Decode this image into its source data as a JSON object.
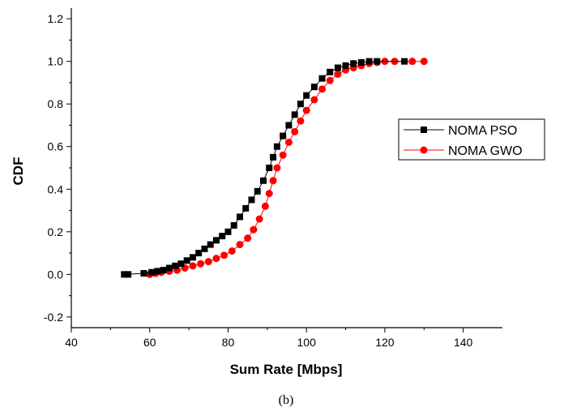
{
  "chart_data": {
    "type": "scatter",
    "xlabel": "Sum Rate [Mbps]",
    "ylabel": "CDF",
    "xlim": [
      40,
      150
    ],
    "ylim": [
      -0.25,
      1.25
    ],
    "x_ticks": [
      40,
      60,
      80,
      100,
      120,
      140
    ],
    "y_ticks": [
      -0.2,
      0.0,
      0.2,
      0.4,
      0.6,
      0.8,
      1.0,
      1.2
    ],
    "grid": false,
    "legend_position": "right",
    "caption": "(b)",
    "series": [
      {
        "name": "NOMA PSO",
        "color": "#000000",
        "marker": "square",
        "points": [
          [
            53.5,
            0.0
          ],
          [
            54.5,
            0.0
          ],
          [
            58.5,
            0.005
          ],
          [
            60.5,
            0.01
          ],
          [
            62,
            0.015
          ],
          [
            63.5,
            0.02
          ],
          [
            65,
            0.03
          ],
          [
            66.5,
            0.04
          ],
          [
            68,
            0.05
          ],
          [
            69.5,
            0.065
          ],
          [
            71,
            0.08
          ],
          [
            72.5,
            0.1
          ],
          [
            74,
            0.12
          ],
          [
            75.5,
            0.14
          ],
          [
            77,
            0.16
          ],
          [
            78.5,
            0.18
          ],
          [
            80,
            0.2
          ],
          [
            81.5,
            0.23
          ],
          [
            83,
            0.27
          ],
          [
            84.5,
            0.31
          ],
          [
            86,
            0.35
          ],
          [
            87.5,
            0.39
          ],
          [
            89,
            0.44
          ],
          [
            90.5,
            0.5
          ],
          [
            91.5,
            0.55
          ],
          [
            92.5,
            0.6
          ],
          [
            94,
            0.65
          ],
          [
            95.5,
            0.7
          ],
          [
            97,
            0.75
          ],
          [
            98.5,
            0.8
          ],
          [
            100,
            0.84
          ],
          [
            102,
            0.88
          ],
          [
            104,
            0.92
          ],
          [
            106,
            0.95
          ],
          [
            108,
            0.97
          ],
          [
            110,
            0.98
          ],
          [
            112,
            0.99
          ],
          [
            114,
            0.995
          ],
          [
            116,
            1.0
          ],
          [
            118,
            1.0
          ],
          [
            125,
            1.0
          ]
        ]
      },
      {
        "name": "NOMA GWO",
        "color": "#ff0000",
        "marker": "circle",
        "points": [
          [
            60,
            0.0
          ],
          [
            61.5,
            0.005
          ],
          [
            63,
            0.01
          ],
          [
            65,
            0.015
          ],
          [
            67,
            0.02
          ],
          [
            69,
            0.03
          ],
          [
            71,
            0.04
          ],
          [
            73,
            0.05
          ],
          [
            75,
            0.06
          ],
          [
            77,
            0.075
          ],
          [
            79,
            0.09
          ],
          [
            81,
            0.11
          ],
          [
            83,
            0.14
          ],
          [
            85,
            0.17
          ],
          [
            86.5,
            0.21
          ],
          [
            88,
            0.26
          ],
          [
            89.5,
            0.32
          ],
          [
            90.5,
            0.38
          ],
          [
            91.5,
            0.44
          ],
          [
            92.5,
            0.5
          ],
          [
            94,
            0.56
          ],
          [
            95.5,
            0.62
          ],
          [
            97,
            0.67
          ],
          [
            98.5,
            0.72
          ],
          [
            100,
            0.77
          ],
          [
            102,
            0.82
          ],
          [
            104,
            0.87
          ],
          [
            106,
            0.91
          ],
          [
            108,
            0.94
          ],
          [
            110,
            0.96
          ],
          [
            112,
            0.97
          ],
          [
            114,
            0.98
          ],
          [
            116,
            0.99
          ],
          [
            118,
            0.995
          ],
          [
            120,
            1.0
          ],
          [
            122.5,
            1.0
          ],
          [
            127,
            1.0
          ],
          [
            130,
            1.0
          ]
        ]
      }
    ]
  }
}
